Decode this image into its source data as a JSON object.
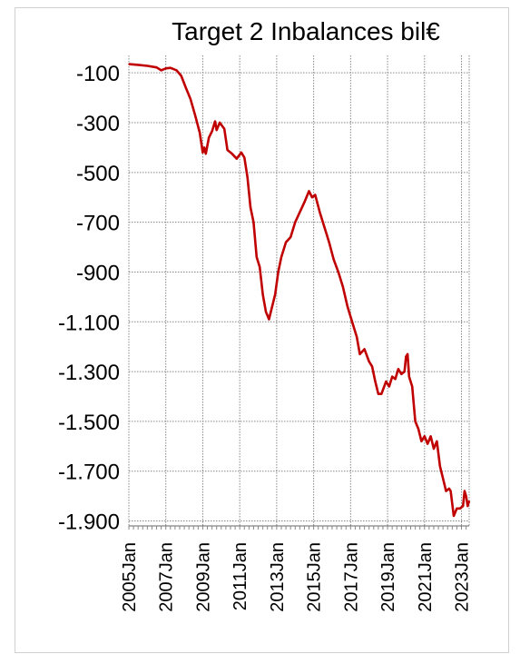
{
  "chart_data": {
    "type": "line",
    "title": "Target 2  Inbalances bil€",
    "xlabel": "",
    "ylabel": "",
    "xlim": [
      "2005-01",
      "2023-06"
    ],
    "ylim": [
      -1900,
      -100
    ],
    "grid": "dotted",
    "y_ticks": [
      {
        "value": -100,
        "label": "-100"
      },
      {
        "value": -300,
        "label": "-300"
      },
      {
        "value": -500,
        "label": "-500"
      },
      {
        "value": -700,
        "label": "-700"
      },
      {
        "value": -900,
        "label": "-900"
      },
      {
        "value": -1100,
        "label": "-1.100"
      },
      {
        "value": -1300,
        "label": "-1.300"
      },
      {
        "value": -1500,
        "label": "-1.500"
      },
      {
        "value": -1700,
        "label": "-1.700"
      },
      {
        "value": -1900,
        "label": "-1.900"
      }
    ],
    "x_ticks": [
      {
        "value": "2005-01",
        "label": "2005Jan"
      },
      {
        "value": "2007-01",
        "label": "2007Jan"
      },
      {
        "value": "2009-01",
        "label": "2009Jan"
      },
      {
        "value": "2011-01",
        "label": "2011Jan"
      },
      {
        "value": "2013-01",
        "label": "2013Jan"
      },
      {
        "value": "2015-01",
        "label": "2015Jan"
      },
      {
        "value": "2017-01",
        "label": "2017Jan"
      },
      {
        "value": "2019-01",
        "label": "2019Jan"
      },
      {
        "value": "2021-01",
        "label": "2021Jan"
      },
      {
        "value": "2023-01",
        "label": "2023Jan"
      }
    ],
    "series": [
      {
        "color": "#c00000",
        "points": [
          [
            "2005-01",
            -65
          ],
          [
            "2005-07",
            -68
          ],
          [
            "2006-01",
            -72
          ],
          [
            "2006-07",
            -78
          ],
          [
            "2006-10",
            -90
          ],
          [
            "2007-01",
            -82
          ],
          [
            "2007-04",
            -80
          ],
          [
            "2007-08",
            -90
          ],
          [
            "2007-11",
            -112
          ],
          [
            "2008-02",
            -160
          ],
          [
            "2008-05",
            -205
          ],
          [
            "2008-08",
            -270
          ],
          [
            "2008-11",
            -340
          ],
          [
            "2009-01",
            -420
          ],
          [
            "2009-02",
            -400
          ],
          [
            "2009-03",
            -425
          ],
          [
            "2009-05",
            -360
          ],
          [
            "2009-07",
            -335
          ],
          [
            "2009-09",
            -295
          ],
          [
            "2009-10",
            -330
          ],
          [
            "2009-12",
            -300
          ],
          [
            "2010-03",
            -325
          ],
          [
            "2010-05",
            -410
          ],
          [
            "2010-08",
            -425
          ],
          [
            "2010-11",
            -445
          ],
          [
            "2011-02",
            -420
          ],
          [
            "2011-04",
            -440
          ],
          [
            "2011-06",
            -520
          ],
          [
            "2011-08",
            -640
          ],
          [
            "2011-10",
            -700
          ],
          [
            "2011-12",
            -840
          ],
          [
            "2012-02",
            -880
          ],
          [
            "2012-04",
            -990
          ],
          [
            "2012-06",
            -1060
          ],
          [
            "2012-08",
            -1090
          ],
          [
            "2012-10",
            -1040
          ],
          [
            "2012-12",
            -990
          ],
          [
            "2013-02",
            -900
          ],
          [
            "2013-04",
            -840
          ],
          [
            "2013-07",
            -780
          ],
          [
            "2013-10",
            -760
          ],
          [
            "2014-01",
            -700
          ],
          [
            "2014-04",
            -660
          ],
          [
            "2014-07",
            -620
          ],
          [
            "2014-10",
            -575
          ],
          [
            "2014-12",
            -600
          ],
          [
            "2015-02",
            -590
          ],
          [
            "2015-05",
            -660
          ],
          [
            "2015-08",
            -720
          ],
          [
            "2015-11",
            -780
          ],
          [
            "2016-02",
            -850
          ],
          [
            "2016-05",
            -900
          ],
          [
            "2016-08",
            -960
          ],
          [
            "2016-11",
            -1040
          ],
          [
            "2017-02",
            -1100
          ],
          [
            "2017-05",
            -1160
          ],
          [
            "2017-07",
            -1230
          ],
          [
            "2017-10",
            -1210
          ],
          [
            "2018-01",
            -1260
          ],
          [
            "2018-03",
            -1280
          ],
          [
            "2018-05",
            -1340
          ],
          [
            "2018-07",
            -1390
          ],
          [
            "2018-09",
            -1390
          ],
          [
            "2018-12",
            -1340
          ],
          [
            "2019-02",
            -1360
          ],
          [
            "2019-04",
            -1320
          ],
          [
            "2019-06",
            -1330
          ],
          [
            "2019-08",
            -1290
          ],
          [
            "2019-10",
            -1310
          ],
          [
            "2019-12",
            -1300
          ],
          [
            "2020-01",
            -1240
          ],
          [
            "2020-02",
            -1230
          ],
          [
            "2020-03",
            -1320
          ],
          [
            "2020-05",
            -1360
          ],
          [
            "2020-07",
            -1500
          ],
          [
            "2020-09",
            -1530
          ],
          [
            "2020-11",
            -1580
          ],
          [
            "2021-01",
            -1560
          ],
          [
            "2021-03",
            -1590
          ],
          [
            "2021-05",
            -1560
          ],
          [
            "2021-07",
            -1610
          ],
          [
            "2021-09",
            -1580
          ],
          [
            "2021-11",
            -1680
          ],
          [
            "2022-01",
            -1730
          ],
          [
            "2022-03",
            -1780
          ],
          [
            "2022-05",
            -1770
          ],
          [
            "2022-06",
            -1780
          ],
          [
            "2022-08",
            -1880
          ],
          [
            "2022-10",
            -1850
          ],
          [
            "2022-12",
            -1850
          ],
          [
            "2023-02",
            -1840
          ],
          [
            "2023-03",
            -1780
          ],
          [
            "2023-04",
            -1800
          ],
          [
            "2023-05",
            -1840
          ],
          [
            "2023-06",
            -1820
          ]
        ]
      }
    ]
  }
}
